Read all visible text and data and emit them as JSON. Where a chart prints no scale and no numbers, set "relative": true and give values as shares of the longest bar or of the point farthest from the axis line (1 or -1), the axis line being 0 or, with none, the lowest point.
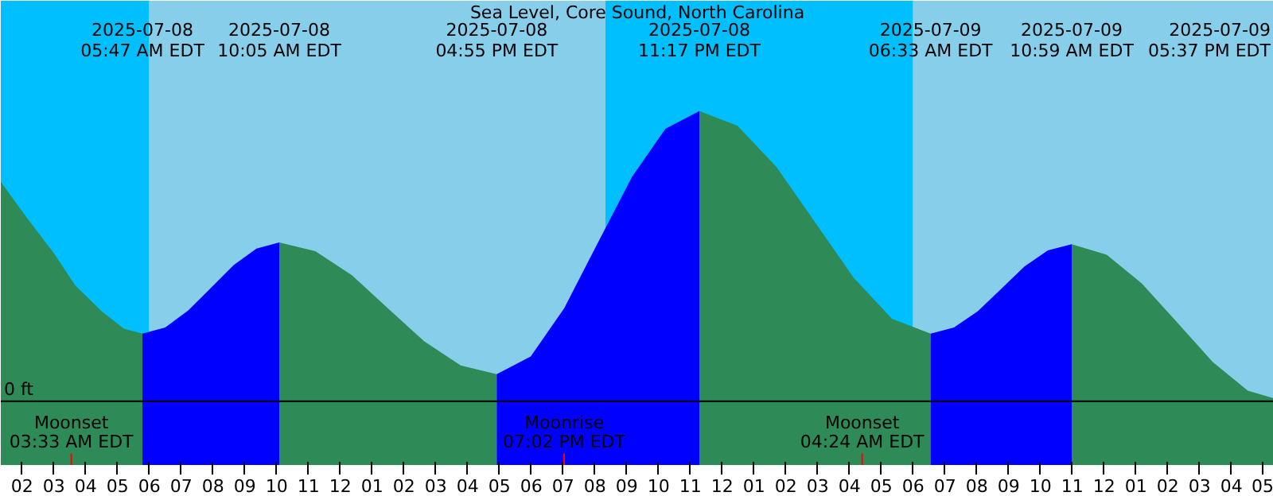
{
  "chart_data": {
    "type": "area",
    "title": "Sea Level, Core Sound, North Carolina",
    "relative": true,
    "xlim": [
      "2025-07-08T01:20",
      "2025-07-09T17:20"
    ],
    "xticks": [
      {
        "value": "2025-07-08T02:00",
        "label": "02"
      },
      {
        "value": "2025-07-08T03:00",
        "label": "03"
      },
      {
        "value": "2025-07-08T04:00",
        "label": "04"
      },
      {
        "value": "2025-07-08T05:00",
        "label": "05"
      },
      {
        "value": "2025-07-08T06:00",
        "label": "06"
      },
      {
        "value": "2025-07-08T07:00",
        "label": "07"
      },
      {
        "value": "2025-07-08T08:00",
        "label": "08"
      },
      {
        "value": "2025-07-08T09:00",
        "label": "09"
      },
      {
        "value": "2025-07-08T10:00",
        "label": "10"
      },
      {
        "value": "2025-07-08T11:00",
        "label": "11"
      },
      {
        "value": "2025-07-08T12:00",
        "label": "12"
      },
      {
        "value": "2025-07-08T13:00",
        "label": "01"
      },
      {
        "value": "2025-07-08T14:00",
        "label": "02"
      },
      {
        "value": "2025-07-08T15:00",
        "label": "03"
      },
      {
        "value": "2025-07-08T16:00",
        "label": "04"
      },
      {
        "value": "2025-07-08T17:00",
        "label": "05"
      },
      {
        "value": "2025-07-08T18:00",
        "label": "06"
      },
      {
        "value": "2025-07-08T19:00",
        "label": "07"
      },
      {
        "value": "2025-07-08T20:00",
        "label": "08"
      },
      {
        "value": "2025-07-08T21:00",
        "label": "09"
      },
      {
        "value": "2025-07-08T22:00",
        "label": "10"
      },
      {
        "value": "2025-07-08T23:00",
        "label": "11"
      },
      {
        "value": "2025-07-09T00:00",
        "label": "12"
      },
      {
        "value": "2025-07-09T01:00",
        "label": "01"
      },
      {
        "value": "2025-07-09T02:00",
        "label": "02"
      },
      {
        "value": "2025-07-09T03:00",
        "label": "03"
      },
      {
        "value": "2025-07-09T04:00",
        "label": "04"
      },
      {
        "value": "2025-07-09T05:00",
        "label": "05"
      },
      {
        "value": "2025-07-09T06:00",
        "label": "06"
      },
      {
        "value": "2025-07-09T07:00",
        "label": "07"
      },
      {
        "value": "2025-07-09T08:00",
        "label": "08"
      },
      {
        "value": "2025-07-09T09:00",
        "label": "09"
      },
      {
        "value": "2025-07-09T10:00",
        "label": "10"
      },
      {
        "value": "2025-07-09T11:00",
        "label": "11"
      },
      {
        "value": "2025-07-09T12:00",
        "label": "12"
      },
      {
        "value": "2025-07-09T13:00",
        "label": "01"
      },
      {
        "value": "2025-07-09T14:00",
        "label": "02"
      },
      {
        "value": "2025-07-09T15:00",
        "label": "03"
      },
      {
        "value": "2025-07-09T16:00",
        "label": "04"
      },
      {
        "value": "2025-07-09T17:00",
        "label": "05"
      }
    ],
    "series": [
      {
        "color": "#2e8b57",
        "x": [
          "2025-07-08T01:20",
          "2025-07-08T02:10",
          "2025-07-08T03:00",
          "2025-07-08T03:40",
          "2025-07-08T04:30",
          "2025-07-08T05:12",
          "2025-07-08T05:47"
        ],
        "values": [
          0.756,
          0.63,
          0.51,
          0.4,
          0.31,
          0.25,
          0.233
        ]
      },
      {
        "color": "#0000ff",
        "x": [
          "2025-07-08T05:47",
          "2025-07-08T06:30",
          "2025-07-08T07:13",
          "2025-07-08T07:56",
          "2025-07-08T08:39",
          "2025-07-08T09:22",
          "2025-07-08T10:05"
        ],
        "values": [
          0.233,
          0.254,
          0.312,
          0.39,
          0.469,
          0.526,
          0.547
        ]
      },
      {
        "color": "#2e8b57",
        "x": [
          "2025-07-08T10:05",
          "2025-07-08T11:13",
          "2025-07-08T12:22",
          "2025-07-08T13:30",
          "2025-07-08T14:38",
          "2025-07-08T15:47",
          "2025-07-08T16:55"
        ],
        "values": [
          0.547,
          0.517,
          0.434,
          0.32,
          0.207,
          0.123,
          0.093
        ]
      },
      {
        "color": "#0000ff",
        "x": [
          "2025-07-08T16:55",
          "2025-07-08T17:59",
          "2025-07-08T19:02",
          "2025-07-08T20:06",
          "2025-07-08T21:10",
          "2025-07-08T22:13",
          "2025-07-08T23:17"
        ],
        "values": [
          0.093,
          0.154,
          0.32,
          0.547,
          0.773,
          0.939,
          1.0
        ]
      },
      {
        "color": "#2e8b57",
        "x": [
          "2025-07-08T23:17",
          "2025-07-09T00:29",
          "2025-07-09T01:42",
          "2025-07-09T02:55",
          "2025-07-09T04:08",
          "2025-07-09T05:20",
          "2025-07-09T06:33"
        ],
        "values": [
          1.0,
          0.949,
          0.808,
          0.617,
          0.425,
          0.284,
          0.233
        ]
      },
      {
        "color": "#0000ff",
        "x": [
          "2025-07-09T06:33",
          "2025-07-09T07:17",
          "2025-07-09T08:02",
          "2025-07-09T08:46",
          "2025-07-09T09:30",
          "2025-07-09T10:14",
          "2025-07-09T10:59"
        ],
        "values": [
          0.233,
          0.254,
          0.31,
          0.387,
          0.464,
          0.52,
          0.541
        ]
      },
      {
        "color": "#2e8b57",
        "x": [
          "2025-07-09T10:59",
          "2025-07-09T12:05",
          "2025-07-09T13:11",
          "2025-07-09T14:18",
          "2025-07-09T15:25",
          "2025-07-09T16:31",
          "2025-07-09T17:20"
        ],
        "values": [
          0.541,
          0.505,
          0.406,
          0.271,
          0.135,
          0.036,
          0.01
        ]
      }
    ],
    "bands": [
      {
        "axis": "x",
        "from": "2025-07-08T01:20",
        "to": "2025-07-08T05:59",
        "color": "#00bfff"
      },
      {
        "axis": "x",
        "from": "2025-07-08T05:59",
        "to": "2025-07-08T20:20",
        "color": "#87ceeb"
      },
      {
        "axis": "x",
        "from": "2025-07-08T20:20",
        "to": "2025-07-09T06:00",
        "color": "#00bfff"
      },
      {
        "axis": "x",
        "from": "2025-07-09T06:00",
        "to": "2025-07-09T17:20",
        "color": "#87ceeb"
      }
    ],
    "ref_lines": [
      {
        "axis": "y",
        "value": 0,
        "label": "0 ft",
        "color": "#000000"
      },
      {
        "axis": "x",
        "value": "2025-07-08T03:33",
        "label": "Moonset\n03:33 AM EDT",
        "color": "#ff0000"
      },
      {
        "axis": "x",
        "value": "2025-07-08T19:02",
        "label": "Moonrise\n07:02 PM EDT",
        "color": "#ff0000"
      },
      {
        "axis": "x",
        "value": "2025-07-09T04:24",
        "label": "Moonset\n04:24 AM EDT",
        "color": "#ff0000"
      }
    ],
    "annotations": [
      "2025-07-08\n05:47 AM EDT",
      "2025-07-08\n10:05 AM EDT",
      "2025-07-08\n04:55 PM EDT",
      "2025-07-08\n11:17 PM EDT",
      "2025-07-09\n06:33 AM EDT",
      "2025-07-09\n10:59 AM EDT",
      "2025-07-09\n05:37 PM EDT"
    ]
  }
}
